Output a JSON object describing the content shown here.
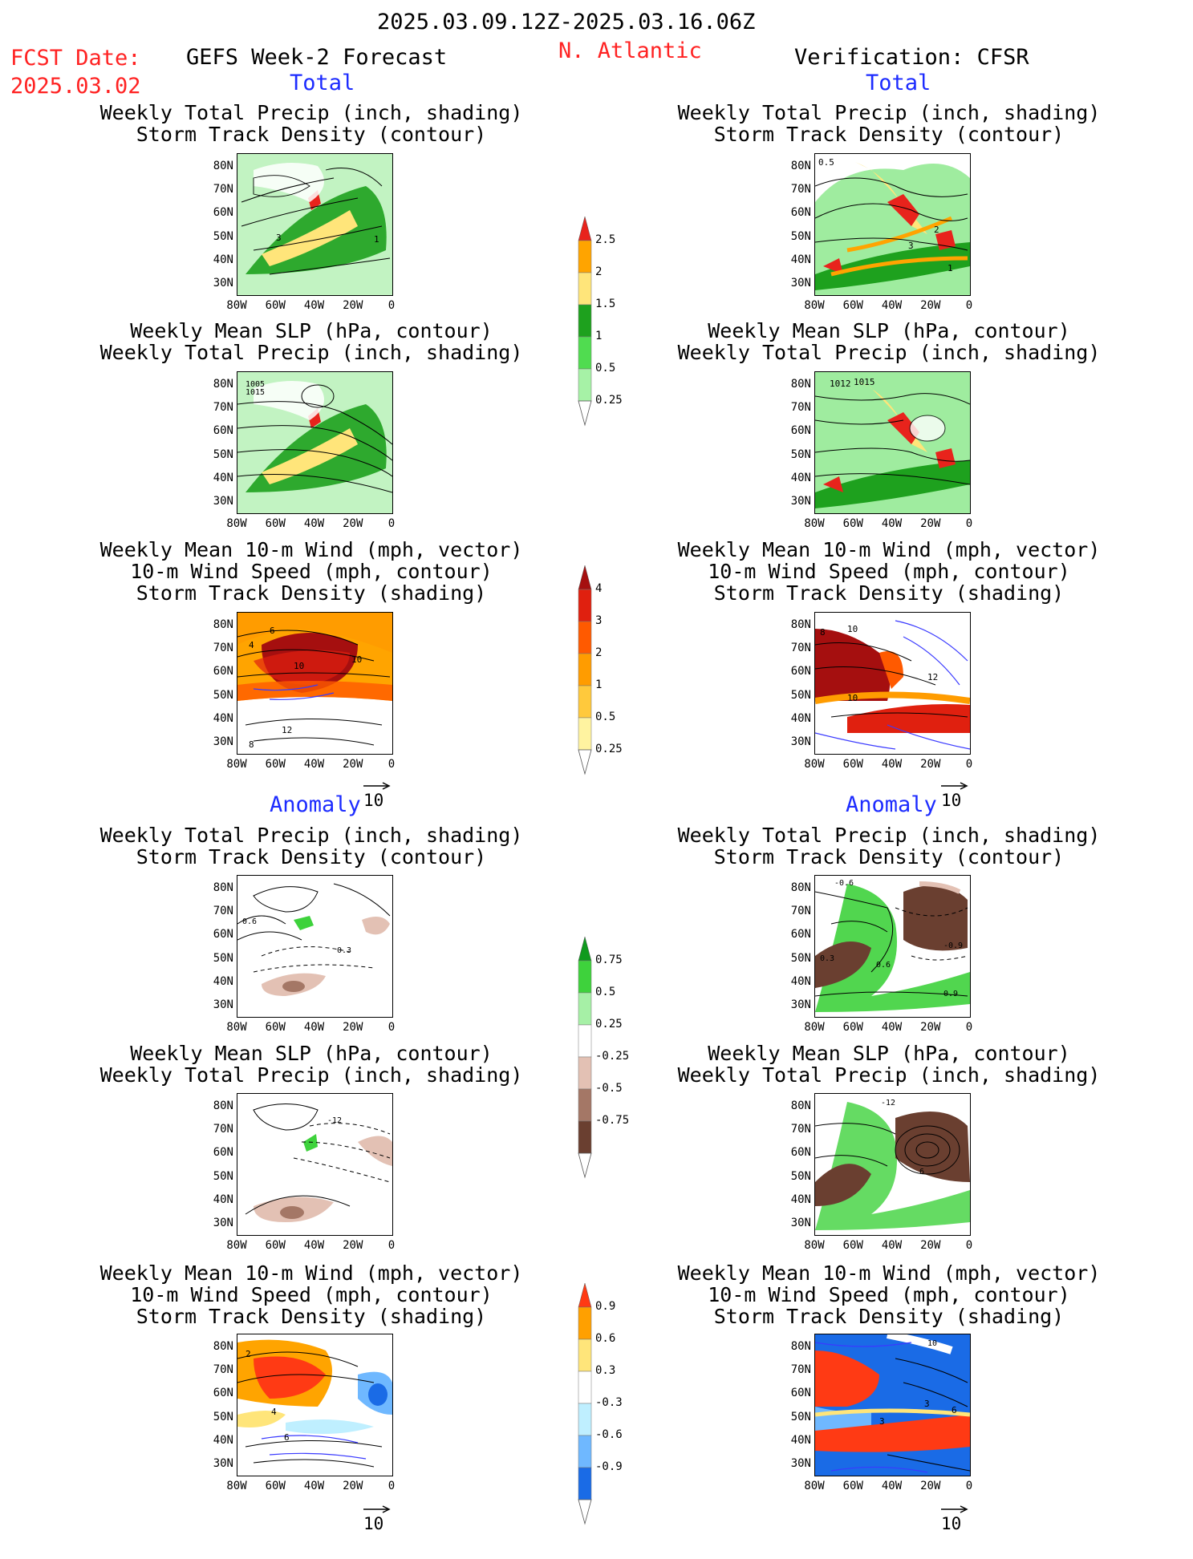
{
  "header": {
    "date_range": "2025.03.09.12Z-2025.03.16.06Z",
    "fcst_label": "FCST Date:",
    "fcst_date": "2025.03.02",
    "forecast_title": "GEFS Week-2 Forecast",
    "region": "N. Atlantic",
    "verification": "Verification: CFSR"
  },
  "sections": {
    "total": "Total",
    "anomaly": "Anomaly"
  },
  "panel_titles": {
    "precip_track": [
      "Weekly Total Precip (inch, shading)",
      "Storm Track Density (contour)"
    ],
    "slp_precip": [
      "Weekly Mean SLP (hPa, contour)",
      "Weekly Total Precip (inch, shading)"
    ],
    "wind_track": [
      "Weekly Mean 10-m Wind (mph, vector)",
      "10-m Wind Speed (mph, contour)",
      "Storm Track Density (shading)"
    ]
  },
  "axes": {
    "lat_labels": [
      "80N",
      "70N",
      "60N",
      "50N",
      "40N",
      "30N"
    ],
    "lon_labels": [
      "80W",
      "60W",
      "40W",
      "20W",
      "0"
    ]
  },
  "vector_ref": "10",
  "colorbars": {
    "precip_total": {
      "labels": [
        "2.5",
        "2",
        "1.5",
        "1",
        "0.5",
        "0.25"
      ],
      "colors": [
        "#e8231c",
        "#ffa400",
        "#ffe57a",
        "#1ea11e",
        "#50dc50",
        "#a6f2a6"
      ]
    },
    "track_total": {
      "labels": [
        "4",
        "3",
        "2",
        "1",
        "0.5",
        "0.25"
      ],
      "colors": [
        "#a50f0f",
        "#e0200f",
        "#ff5a00",
        "#ff9c00",
        "#ffc93c",
        "#fff3a0"
      ]
    },
    "precip_anom": {
      "labels": [
        "0.75",
        "0.5",
        "0.25",
        "-0.25",
        "-0.5",
        "-0.75"
      ],
      "colors": [
        "#0f9a1e",
        "#3ed23c",
        "#a6f0a6",
        "#ffffff",
        "#e3c1b4",
        "#a47766",
        "#6a3f30"
      ]
    },
    "track_anom": {
      "labels": [
        "0.9",
        "0.6",
        "0.3",
        "-0.3",
        "-0.6",
        "-0.9"
      ],
      "colors": [
        "#ff3a14",
        "#ffa000",
        "#ffe57a",
        "#ffffff",
        "#bfefff",
        "#6fb8ff",
        "#1a6be6"
      ]
    }
  },
  "panel_labels": {
    "fc_track": [
      "3",
      "1"
    ],
    "fc_slp": [
      "1005",
      "1015"
    ],
    "fc_wind": [
      "6",
      "4",
      "10",
      "10",
      "12",
      "8"
    ],
    "ob_track": [
      "0.5",
      "2",
      "3",
      "1"
    ],
    "ob_slp": [
      "1012",
      "1015"
    ],
    "ob_wind": [
      "8",
      "10",
      "12",
      "10"
    ],
    "fa_track": [
      "0.6",
      "0.3"
    ],
    "fa_slp": [
      "-12"
    ],
    "fa_wind": [
      "2",
      "4",
      "6"
    ],
    "oa_track": [
      "-0.6",
      "-0.9",
      "0.6",
      "0.3",
      "0.9"
    ],
    "oa_slp": [
      "-12",
      "6"
    ],
    "oa_wind": [
      "10",
      "3",
      "3",
      "6"
    ]
  }
}
